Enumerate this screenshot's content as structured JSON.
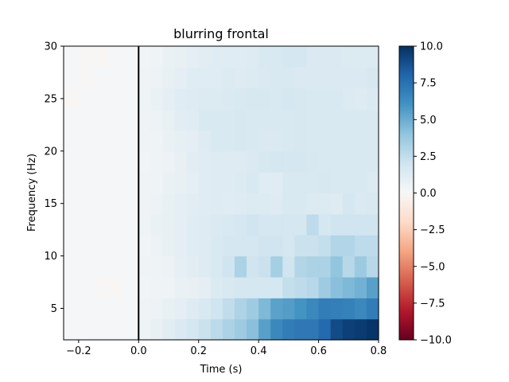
{
  "chart_data": {
    "type": "heatmap",
    "title": "blurring frontal",
    "xlabel": "Time (s)",
    "ylabel": "Frequency (Hz)",
    "xlim": [
      -0.25,
      0.8
    ],
    "ylim": [
      2,
      30
    ],
    "xticks": [
      -0.2,
      0.0,
      0.2,
      0.4,
      0.6,
      0.8
    ],
    "xtick_labels": [
      "−0.2",
      "0.0",
      "0.2",
      "0.4",
      "0.6",
      "0.8"
    ],
    "yticks": [
      5,
      10,
      15,
      20,
      25,
      30
    ],
    "ytick_labels": [
      "5",
      "10",
      "15",
      "20",
      "25",
      "30"
    ],
    "x_edges": [
      -0.25,
      -0.2,
      -0.15,
      -0.1,
      -0.05,
      0,
      0.04,
      0.08,
      0.12,
      0.16,
      0.2,
      0.24,
      0.28,
      0.32,
      0.36,
      0.4,
      0.44,
      0.48,
      0.52,
      0.56,
      0.6,
      0.64,
      0.68,
      0.72,
      0.76,
      0.8
    ],
    "y_edges": [
      2,
      4,
      6,
      8,
      10,
      12,
      14,
      16,
      18,
      20,
      22,
      24,
      26,
      28,
      30
    ],
    "values": [
      [
        0.1,
        0.1,
        0.1,
        0.1,
        0.1,
        0.5,
        0.8,
        1.1,
        1.5,
        1.8,
        2.2,
        2.7,
        3.2,
        3.6,
        4.2,
        5.5,
        6.5,
        7.0,
        7.2,
        7.2,
        7.8,
        9.0,
        9.4,
        9.6,
        9.8
      ],
      [
        0.1,
        0.1,
        0.1,
        0.1,
        0.1,
        0.4,
        0.6,
        0.8,
        1.0,
        1.3,
        1.6,
        2.0,
        2.5,
        3.1,
        3.6,
        4.5,
        5.4,
        5.6,
        6.0,
        6.5,
        7.0,
        6.9,
        6.8,
        6.5,
        7.0
      ],
      [
        0.1,
        0.1,
        -0.1,
        -0.1,
        0.1,
        0.3,
        0.4,
        0.5,
        0.7,
        0.8,
        1.0,
        1.4,
        1.6,
        1.8,
        1.8,
        1.8,
        1.8,
        2.4,
        2.6,
        2.8,
        3.6,
        4.2,
        4.5,
        4.8,
        5.5
      ],
      [
        0.1,
        0.1,
        0.1,
        0.1,
        0.1,
        0.4,
        0.5,
        0.6,
        0.9,
        1.1,
        1.3,
        1.6,
        2.0,
        3.2,
        2.0,
        2.2,
        3.4,
        2.0,
        3.0,
        3.2,
        3.2,
        4.0,
        2.8,
        3.7,
        2.8
      ],
      [
        0.1,
        0.1,
        0.1,
        0.1,
        0.1,
        0.3,
        0.6,
        0.8,
        1.0,
        1.2,
        1.3,
        1.6,
        1.8,
        1.8,
        1.8,
        2.0,
        2.0,
        1.8,
        2.2,
        2.2,
        2.4,
        3.0,
        3.0,
        2.6,
        2.6
      ],
      [
        0.1,
        0.1,
        0.1,
        0.1,
        0.1,
        0.5,
        0.7,
        0.8,
        1.0,
        1.2,
        1.3,
        1.5,
        1.6,
        1.8,
        2.0,
        1.8,
        1.8,
        1.8,
        1.8,
        2.6,
        1.8,
        2.0,
        2.0,
        2.0,
        2.0
      ],
      [
        0.1,
        0.1,
        0.1,
        0.1,
        0.1,
        0.4,
        0.6,
        0.8,
        1.0,
        1.1,
        1.2,
        1.3,
        1.2,
        1.3,
        1.4,
        1.4,
        1.3,
        1.6,
        1.6,
        1.4,
        1.4,
        1.3,
        1.8,
        1.5,
        1.6
      ],
      [
        0.1,
        0.1,
        0.1,
        0.1,
        0.1,
        0.4,
        0.5,
        0.7,
        0.8,
        1.0,
        1.2,
        1.3,
        1.3,
        1.4,
        1.6,
        1.2,
        1.2,
        1.6,
        1.6,
        1.6,
        1.7,
        1.6,
        1.6,
        1.6,
        1.4
      ],
      [
        0.1,
        0.1,
        0.1,
        0.1,
        0.1,
        0.3,
        0.5,
        0.6,
        0.8,
        1.1,
        1.2,
        1.3,
        1.3,
        1.3,
        1.5,
        1.7,
        1.8,
        1.8,
        1.8,
        1.7,
        1.6,
        1.6,
        1.6,
        1.6,
        1.6
      ],
      [
        0.1,
        0.1,
        0.1,
        0.1,
        0.1,
        0.4,
        0.5,
        0.7,
        0.9,
        1.0,
        1.3,
        1.6,
        1.6,
        1.7,
        1.6,
        1.5,
        1.5,
        1.6,
        1.7,
        1.6,
        1.6,
        1.6,
        1.6,
        1.6,
        1.6
      ],
      [
        0.1,
        0.1,
        0.1,
        0.1,
        0.1,
        0.4,
        0.6,
        0.8,
        1.1,
        1.2,
        1.6,
        1.6,
        1.6,
        1.7,
        1.6,
        1.6,
        1.6,
        1.6,
        1.7,
        1.6,
        1.6,
        1.6,
        1.6,
        1.6,
        1.6
      ],
      [
        -0.1,
        0.1,
        0.1,
        0.1,
        0.1,
        0.5,
        0.7,
        1.0,
        1.2,
        1.3,
        1.4,
        1.4,
        1.5,
        1.6,
        1.7,
        1.7,
        1.6,
        1.8,
        1.7,
        1.6,
        1.6,
        1.6,
        1.4,
        1.3,
        1.5
      ],
      [
        0.1,
        -0.1,
        0.1,
        0.1,
        0.1,
        0.4,
        0.6,
        0.8,
        1.0,
        1.2,
        1.2,
        1.2,
        1.4,
        1.3,
        1.4,
        1.5,
        1.6,
        1.6,
        1.5,
        1.5,
        1.5,
        1.5,
        1.5,
        1.5,
        1.7
      ],
      [
        0.1,
        -0.1,
        -0.1,
        0.1,
        0.1,
        0.3,
        0.5,
        0.7,
        0.8,
        1.0,
        1.1,
        1.2,
        1.2,
        1.2,
        1.3,
        1.6,
        1.6,
        1.8,
        1.8,
        1.5,
        1.5,
        1.5,
        1.4,
        1.4,
        1.4
      ]
    ],
    "vline_x": 0.0,
    "colorbar": {
      "vmin": -10.0,
      "vmax": 10.0,
      "ticks": [
        -10,
        -7.5,
        -5,
        -2.5,
        0,
        2.5,
        5,
        7.5,
        10
      ],
      "tick_labels": [
        "−10.0",
        "−7.5",
        "−5.0",
        "−2.5",
        "0.0",
        "2.5",
        "5.0",
        "7.5",
        "10.0"
      ],
      "colormap": [
        "#67001f",
        "#b2182b",
        "#d6604d",
        "#f4a582",
        "#fddbc7",
        "#f7f7f7",
        "#d1e5f0",
        "#92c5de",
        "#4393c3",
        "#2166ac",
        "#053061"
      ]
    }
  }
}
